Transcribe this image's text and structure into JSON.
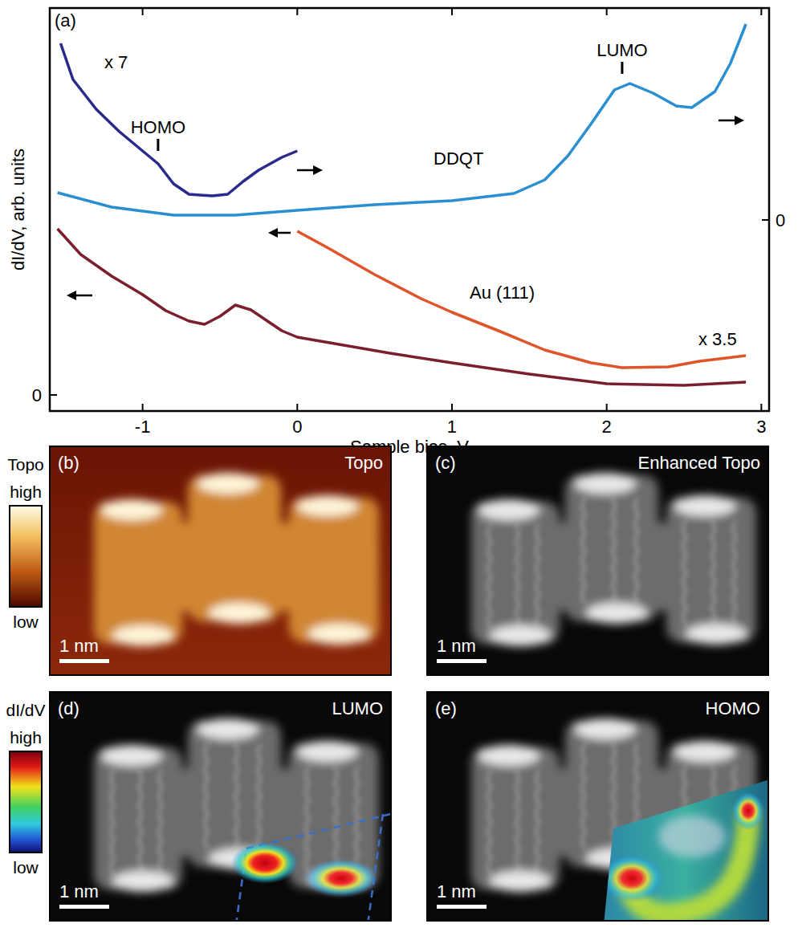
{
  "chart_data": {
    "type": "line",
    "x_label": "Sample bias, V",
    "y_label": "dI/dV, arb. units",
    "xlim": [
      -1.6,
      3.05
    ],
    "xticks": [
      -1,
      0,
      1,
      2,
      3
    ],
    "ylim": [
      -0.2,
      4.82
    ],
    "yticks": [
      0
    ],
    "y2lim": [
      -2.38,
      2.64
    ],
    "y2ticks": [
      0
    ],
    "series": [
      {
        "name": "DDQT",
        "color": "#2a8fd0",
        "axis": "y2",
        "x": [
          -1.55,
          -1.2,
          -0.8,
          -0.4,
          0,
          0.5,
          1.0,
          1.4,
          1.6,
          1.75,
          1.9,
          2.05,
          2.15,
          2.3,
          2.45,
          2.55,
          2.7,
          2.8,
          2.9
        ],
        "values": [
          0.34,
          0.16,
          0.06,
          0.06,
          0.12,
          0.19,
          0.24,
          0.33,
          0.5,
          0.8,
          1.2,
          1.62,
          1.7,
          1.58,
          1.42,
          1.4,
          1.6,
          1.95,
          2.44
        ]
      },
      {
        "name": "x 7",
        "color": "#2a2a8c",
        "axis": "y2",
        "x": [
          -1.53,
          -1.45,
          -1.3,
          -1.15,
          -1.0,
          -0.9,
          -0.8,
          -0.7,
          -0.55,
          -0.45,
          -0.35,
          -0.25,
          -0.1,
          0
        ],
        "values": [
          2.2,
          1.75,
          1.38,
          1.1,
          0.86,
          0.7,
          0.45,
          0.32,
          0.3,
          0.32,
          0.48,
          0.62,
          0.78,
          0.86
        ]
      },
      {
        "name": "Au (111)",
        "color": "#7a1f2e",
        "axis": "y",
        "x": [
          -1.55,
          -1.4,
          -1.2,
          -1.0,
          -0.85,
          -0.7,
          -0.6,
          -0.5,
          -0.4,
          -0.3,
          -0.1,
          0,
          0.3,
          0.6,
          1,
          1.5,
          2,
          2.5,
          2.9
        ],
        "values": [
          2.07,
          1.75,
          1.48,
          1.25,
          1.05,
          0.92,
          0.88,
          0.98,
          1.12,
          1.06,
          0.8,
          0.72,
          0.62,
          0.52,
          0.4,
          0.26,
          0.14,
          0.12,
          0.16
        ]
      },
      {
        "name": "x 3.5",
        "color": "#e0542a",
        "axis": "y",
        "x": [
          0,
          0.2,
          0.5,
          0.8,
          1.0,
          1.3,
          1.6,
          1.9,
          2.1,
          2.4,
          2.6,
          2.9
        ],
        "values": [
          2.04,
          1.83,
          1.5,
          1.2,
          1.03,
          0.8,
          0.56,
          0.4,
          0.34,
          0.35,
          0.42,
          0.49
        ]
      }
    ],
    "annotations": [
      {
        "text": "(a)"
      },
      {
        "text": "HOMO",
        "x": -0.9,
        "y": 0.86,
        "axis": "y2"
      },
      {
        "text": "LUMO",
        "x": 2.1,
        "y": 1.82,
        "axis": "y2"
      }
    ]
  },
  "panels": [
    {
      "label": "(b)",
      "title": "Topo",
      "scale_bar": "1 nm"
    },
    {
      "label": "(c)",
      "title": "Enhanced Topo",
      "scale_bar": "1 nm"
    },
    {
      "label": "(d)",
      "title": "LUMO",
      "scale_bar": "1 nm"
    },
    {
      "label": "(e)",
      "title": "HOMO",
      "scale_bar": "1 nm"
    }
  ],
  "colorbars": [
    {
      "title": "Topo",
      "high": "high",
      "low": "low"
    },
    {
      "title": "dI/dV",
      "high": "high",
      "low": "low"
    }
  ]
}
